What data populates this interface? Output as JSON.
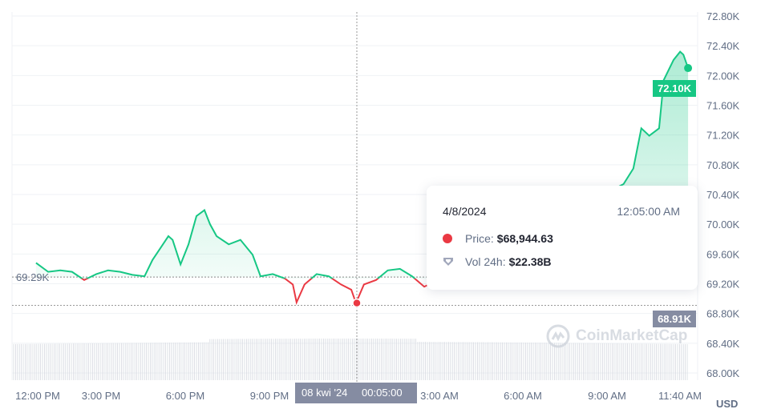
{
  "colors": {
    "up": "#16c784",
    "down": "#ea3943",
    "neutral": "#858ca2",
    "grid": "#eff2f5"
  },
  "chart_data": {
    "type": "line",
    "ylabel_unit": "USD",
    "ylim": [
      68.0,
      72.8
    ],
    "y_ticks": [
      "72.80K",
      "72.40K",
      "72.00K",
      "71.60K",
      "71.20K",
      "70.80K",
      "70.40K",
      "70.00K",
      "69.60K",
      "69.20K",
      "68.80K",
      "68.40K",
      "68.00K"
    ],
    "x_ticks": [
      "12:00 PM",
      "3:00 PM",
      "6:00 PM",
      "9:00 PM",
      "3:00 AM",
      "6:00 AM",
      "9:00 AM",
      "11:40 AM"
    ],
    "reference_price": "69.29K",
    "current_price": "72.10K",
    "hover_price_badge": "68.91K",
    "hover_x_badge": {
      "date": "08 kwi '24",
      "time": "00:05:00"
    },
    "grid": true,
    "series": [
      {
        "unit": "K USD",
        "points": [
          [
            "4/7 12:41",
            69.48
          ],
          [
            "4/7 13:07",
            69.36
          ],
          [
            "4/7 13:33",
            69.38
          ],
          [
            "4/7 13:58",
            69.36
          ],
          [
            "4/7 14:24",
            69.25
          ],
          [
            "4/7 14:50",
            69.33
          ],
          [
            "4/7 15:15",
            69.38
          ],
          [
            "4/7 15:41",
            69.36
          ],
          [
            "4/7 16:07",
            69.32
          ],
          [
            "4/7 16:33",
            69.3
          ],
          [
            "4/7 16:50",
            69.52
          ],
          [
            "4/7 17:07",
            69.68
          ],
          [
            "4/7 17:24",
            69.84
          ],
          [
            "4/7 17:33",
            69.79
          ],
          [
            "4/7 17:50",
            69.46
          ],
          [
            "4/7 18:07",
            69.73
          ],
          [
            "4/7 18:24",
            70.11
          ],
          [
            "4/7 18:41",
            70.19
          ],
          [
            "4/7 18:53",
            70.0
          ],
          [
            "4/7 19:07",
            69.84
          ],
          [
            "4/7 19:33",
            69.73
          ],
          [
            "4/7 19:58",
            69.79
          ],
          [
            "4/7 20:24",
            69.59
          ],
          [
            "4/7 20:41",
            69.3
          ],
          [
            "4/7 21:07",
            69.33
          ],
          [
            "4/7 21:33",
            69.27
          ],
          [
            "4/7 21:50",
            69.19
          ],
          [
            "4/7 21:58",
            68.95
          ],
          [
            "4/7 22:15",
            69.19
          ],
          [
            "4/7 22:41",
            69.33
          ],
          [
            "4/7 23:07",
            69.3
          ],
          [
            "4/7 23:33",
            69.19
          ],
          [
            "4/7 23:55",
            69.12
          ],
          [
            "4/8 00:05",
            68.94
          ],
          [
            "4/8 00:22",
            69.19
          ],
          [
            "4/8 00:48",
            69.25
          ],
          [
            "4/8 01:13",
            69.38
          ],
          [
            "4/8 01:39",
            69.4
          ],
          [
            "4/8 02:05",
            69.3
          ],
          [
            "4/8 02:31",
            69.16
          ],
          [
            "4/8 09:37",
            70.54
          ],
          [
            "4/8 09:58",
            70.75
          ],
          [
            "4/8 10:15",
            71.29
          ],
          [
            "4/8 10:32",
            71.19
          ],
          [
            "4/8 10:53",
            71.29
          ],
          [
            "4/8 11:03",
            71.94
          ],
          [
            "4/8 11:24",
            72.21
          ],
          [
            "4/8 11:38",
            72.32
          ],
          [
            "4/8 11:45",
            72.28
          ],
          [
            "4/8 11:55",
            72.1
          ]
        ]
      }
    ]
  },
  "tooltip": {
    "date": "4/8/2024",
    "time": "12:05:00 AM",
    "price_label": "Price:",
    "price_value": "$68,944.63",
    "volume_label": "Vol 24h:",
    "volume_value": "$22.38B"
  },
  "watermark": "CoinMarketCap"
}
